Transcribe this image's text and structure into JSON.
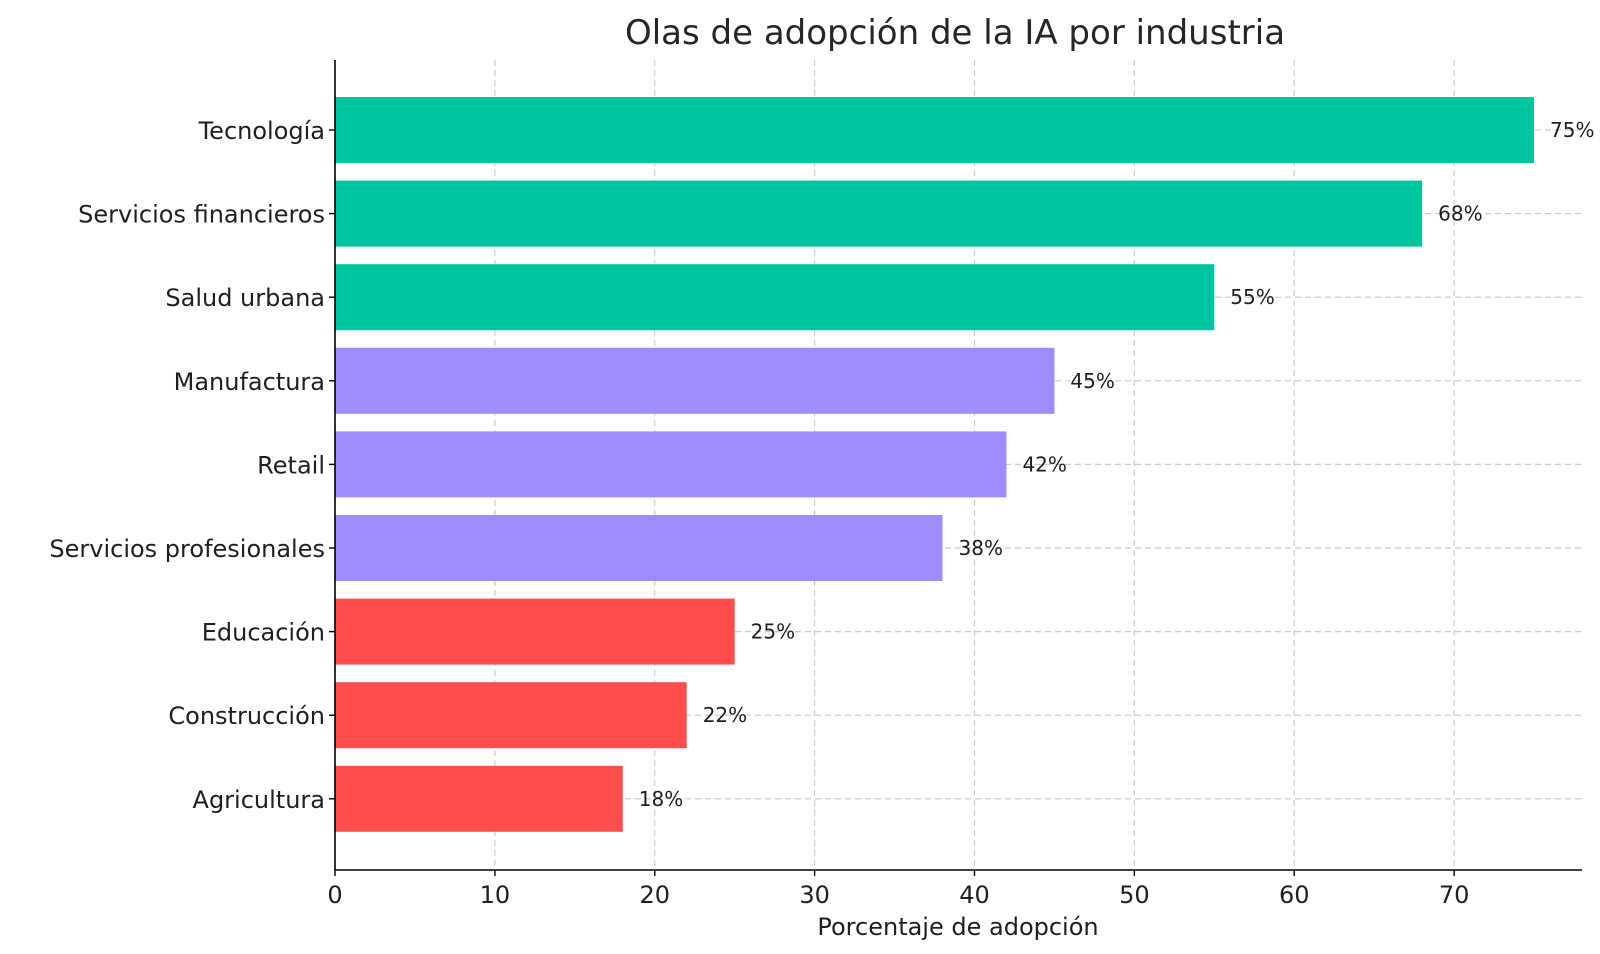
{
  "chart_data": {
    "type": "bar",
    "orientation": "horizontal",
    "title": "Olas de adopción de la IA por industria",
    "xlabel": "Porcentaje de adopción",
    "ylabel": "",
    "xlim": [
      0,
      78
    ],
    "xticks": [
      0,
      10,
      20,
      30,
      40,
      50,
      60,
      70
    ],
    "grid": true,
    "grid_style": "dashed",
    "categories": [
      "Tecnología",
      "Servicios financieros",
      "Salud urbana",
      "Manufactura",
      "Retail",
      "Servicios profesionales",
      "Educación",
      "Construcción",
      "Agricultura"
    ],
    "values": [
      75,
      68,
      55,
      45,
      42,
      38,
      25,
      22,
      18
    ],
    "data_labels": [
      "75%",
      "68%",
      "55%",
      "45%",
      "42%",
      "38%",
      "25%",
      "22%",
      "18%"
    ],
    "bar_colors": [
      "#00C4A0",
      "#00C4A0",
      "#00C4A0",
      "#A08CFF",
      "#A08CFF",
      "#A08CFF",
      "#FF4C4C",
      "#FF4C4C",
      "#FF4C4C"
    ]
  }
}
